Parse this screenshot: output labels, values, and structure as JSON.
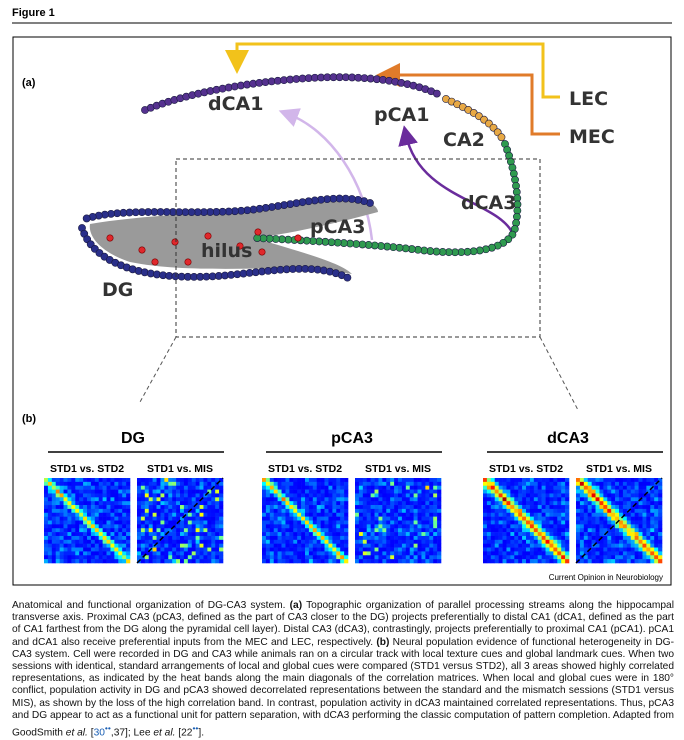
{
  "figure_label": "Figure 1",
  "panel_a": {
    "label": "(a)",
    "dCA1": "dCA1",
    "pCA1": "pCA1",
    "CA2": "CA2",
    "dCA3": "dCA3",
    "pCA3": "pCA3",
    "hilus": "hilus",
    "DG": "DG",
    "LEC": "LEC",
    "MEC": "MEC"
  },
  "panel_b": {
    "label": "(b)",
    "groups": [
      {
        "title": "DG",
        "matrices": [
          "STD1 vs. STD2",
          "STD1 vs. MIS"
        ]
      },
      {
        "title": "pCA3",
        "matrices": [
          "STD1 vs. STD2",
          "STD1 vs. MIS"
        ]
      },
      {
        "title": "dCA3",
        "matrices": [
          "STD1 vs. STD2",
          "STD1 vs. MIS"
        ]
      }
    ]
  },
  "credit": "Current Opinion in Neurobiology",
  "caption": [
    "Anatomical and functional organization of DG-CA3 system. ",
    "(a)",
    " Topographic organization of parallel processing streams along the hippocampal transverse axis. Proximal CA3 (pCA3, defined as the part of CA3 closer to the DG) projects preferentially to distal CA1 (dCA1, defined as the part of CA1 farthest from the DG along the pyramidal cell layer). Distal CA3 (dCA3), contrastingly, projects preferentially to proximal CA1 (pCA1). pCA1 and dCA1 also receive preferential inputs from the MEC and LEC, respectively. ",
    "(b)",
    " Neural population evidence of functional heterogeneity in DG-CA3 system. Cell were recorded in DG and CA3 while animals ran on a circular track with local texture cues and global landmark cues. When two sessions with identical, standard arrangements of local and global cues were compared (STD1 versus STD2), all 3 areas showed highly correlated representations, as indicated by the heat bands along the main diagonals of the correlation matrices. When local and global cues were in 180° conflict, population activity in DG and pCA3 showed decorrelated representations between the standard and the mismatch sessions (STD1 versus MIS), as shown by the loss of the high correlation band. In contrast, population activity in dCA3 maintained correlated representations. Thus, pCA3 and DG appear to act as a functional unit for pattern separation, with dCA3 performing the classic computation of pattern completion. Adapted from GoodSmith ",
    "et al.",
    " [",
    "30",
    "••",
    ",37]; Lee ",
    "et al.",
    " [22",
    "••",
    "]."
  ]
}
